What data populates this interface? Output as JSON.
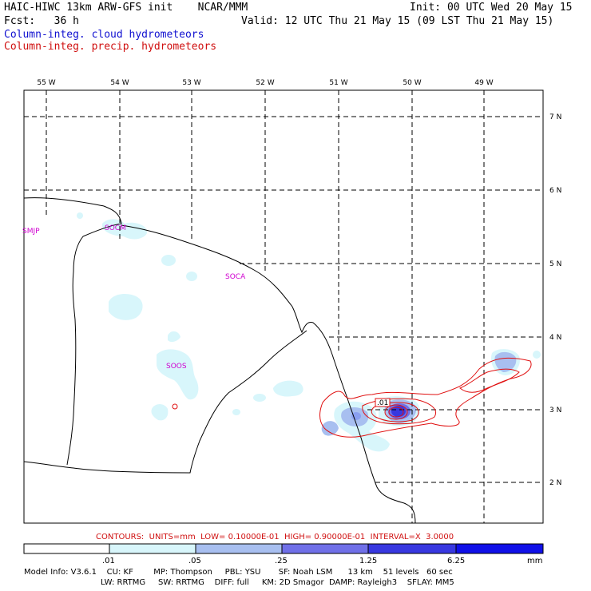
{
  "header": {
    "title": "HAIC-HIWC 13km ARW-GFS init    NCAR/MMM",
    "init": "Init: 00 UTC Wed 20 May 15",
    "fcst": "Fcst:   36 h",
    "valid": "Valid: 12 UTC Thu 21 May 15 (09 LST Thu 21 May 15)",
    "field_cloud": "Column-integ. cloud hydrometeors",
    "field_precip": "Column-integ. precip. hydrometeors"
  },
  "map": {
    "lon_labels": [
      "55 W",
      "54 W",
      "53 W",
      "52 W",
      "51 W",
      "50 W",
      "49 W"
    ],
    "lat_labels": [
      "7 N",
      "6 N",
      "5 N",
      "4 N",
      "3 N",
      "2 N"
    ],
    "stations": [
      "SMJP",
      "SOCM",
      "SOCA",
      "SOOS"
    ],
    "contour_label": ".01"
  },
  "contours_line": "CONTOURS:  UNITS=mm  LOW= 0.10000E-01  HIGH= 0.90000E-01  INTERVAL=X  3.0000",
  "colorbar": {
    "ticks": [
      ".01",
      ".05",
      ".25",
      "1.25",
      "6.25"
    ],
    "units": "mm",
    "colors": [
      "#ffffff",
      "#d8f6fb",
      "#a8bff0",
      "#7070e8",
      "#3838e0",
      "#1010e8"
    ]
  },
  "model_info": {
    "line1": "Model Info: V3.6.1    CU: KF        MP: Thompson     PBL: YSU       SF: Noah LSM      13 km    51 levels   60 sec",
    "line2": "LW: RRTMG     SW: RRTMG    DIFF: full     KM: 2D Smagor  DAMP: Rayleigh3    SFLAY: MM5"
  }
}
